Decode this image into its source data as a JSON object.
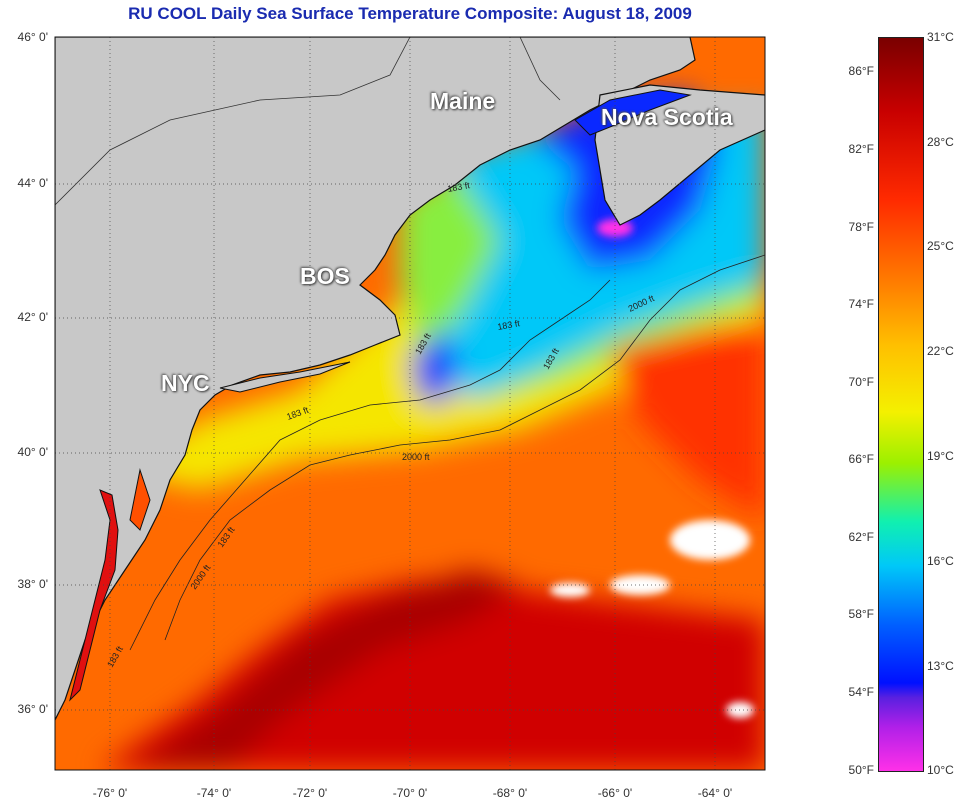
{
  "title": "RU COOL Daily Sea Surface Temperature Composite:  August 18, 2009",
  "map": {
    "lat_labels": [
      "46° 0'",
      "44° 0'",
      "42° 0'",
      "40° 0'",
      "38° 0'",
      "36° 0'"
    ],
    "lon_labels": [
      "-76° 0'",
      "-74° 0'",
      "-72° 0'",
      "-70° 0'",
      "-68° 0'",
      "-66° 0'",
      "-64° 0'"
    ],
    "places": [
      "Maine",
      "Nova Scotia",
      "BOS",
      "NYC"
    ],
    "depth_labels": [
      "2000 ft",
      "2000 ft",
      "2000 ft",
      "183 ft",
      "183 ft",
      "183 ft",
      "183 ft",
      "183 ft",
      "183 ft",
      "183 ft"
    ],
    "colors": {
      "land": "#c8c8c8",
      "title": "#1a2bb0",
      "coast": "#111111",
      "gulf_stream": "#c80000",
      "warm_water": "#ff6a00",
      "cool_water": "#00c8f8",
      "cold_water": "#0a28ff"
    }
  },
  "colorbar": {
    "fahrenheit": [
      "86°F",
      "82°F",
      "78°F",
      "74°F",
      "70°F",
      "66°F",
      "62°F",
      "58°F",
      "54°F",
      "50°F"
    ],
    "celsius": [
      "31°C",
      "28°C",
      "25°C",
      "22°C",
      "19°C",
      "16°C",
      "13°C",
      "10°C"
    ]
  }
}
